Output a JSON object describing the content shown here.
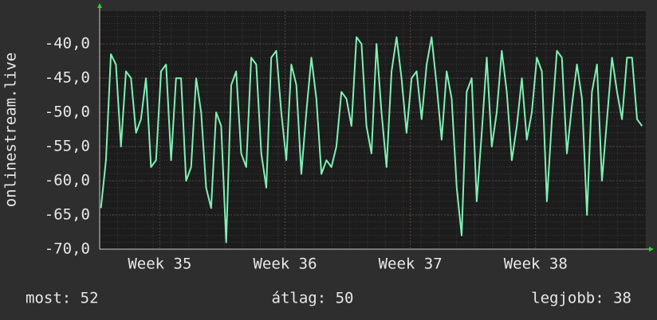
{
  "chart_data": {
    "type": "line",
    "ylabel": "onlinestream.live",
    "x": [
      34.53,
      34.57,
      34.61,
      34.65,
      34.69,
      34.73,
      34.77,
      34.81,
      34.85,
      34.89,
      34.93,
      34.97,
      35.01,
      35.05,
      35.09,
      35.13,
      35.17,
      35.21,
      35.25,
      35.29,
      35.33,
      35.37,
      35.41,
      35.45,
      35.49,
      35.53,
      35.57,
      35.61,
      35.65,
      35.69,
      35.73,
      35.77,
      35.81,
      35.85,
      35.89,
      35.93,
      35.97,
      36.01,
      36.05,
      36.09,
      36.13,
      36.17,
      36.21,
      36.25,
      36.29,
      36.33,
      36.37,
      36.41,
      36.45,
      36.49,
      36.53,
      36.57,
      36.61,
      36.65,
      36.69,
      36.73,
      36.77,
      36.81,
      36.85,
      36.89,
      36.93,
      36.97,
      37.01,
      37.05,
      37.09,
      37.13,
      37.17,
      37.21,
      37.25,
      37.29,
      37.33,
      37.37,
      37.41,
      37.45,
      37.49,
      37.53,
      37.57,
      37.61,
      37.65,
      37.69,
      37.73,
      37.77,
      37.81,
      37.85,
      37.89,
      37.93,
      37.97,
      38.01,
      38.05,
      38.09,
      38.13,
      38.17,
      38.21,
      38.25,
      38.29,
      38.33,
      38.37,
      38.41,
      38.45,
      38.49,
      38.53,
      38.57,
      38.61,
      38.65,
      38.69,
      38.73,
      38.77,
      38.81,
      38.85
    ],
    "series": [
      {
        "name": "onlinestream.live",
        "color": "#7ff0b4",
        "values": [
          -64,
          -57,
          -41.5,
          -43,
          -55,
          -44,
          -45,
          -53,
          -51,
          -45,
          -58,
          -57,
          -44,
          -43,
          -57,
          -45,
          -45,
          -60,
          -58,
          -45,
          -50,
          -61,
          -64,
          -50,
          -52,
          -69,
          -46,
          -44,
          -56,
          -58,
          -42,
          -43,
          -56,
          -61,
          -42,
          -41,
          -50,
          -57,
          -43,
          -46,
          -59,
          -50,
          -42,
          -48,
          -59,
          -57,
          -58,
          -55,
          -47,
          -48,
          -52,
          -39,
          -40,
          -52,
          -56,
          -40,
          -50,
          -58,
          -44,
          -39,
          -45,
          -53,
          -45,
          -44,
          -51,
          -43,
          -39,
          -46,
          -54,
          -44,
          -48,
          -61,
          -68,
          -47,
          -45,
          -63,
          -53,
          -42,
          -55,
          -50,
          -41,
          -47,
          -57,
          -52,
          -45,
          -54,
          -50,
          -42,
          -44,
          -63,
          -51,
          -41,
          -42,
          -56,
          -49,
          -43,
          -48,
          -65,
          -47,
          -43,
          -60,
          -51,
          -42,
          -47,
          -51,
          -42,
          -42,
          -51,
          -52
        ]
      }
    ],
    "xlim": [
      34.52,
      38.88
    ],
    "xticks": [
      {
        "value": 35,
        "label": "Week 35"
      },
      {
        "value": 36,
        "label": "Week 36"
      },
      {
        "value": 37,
        "label": "Week 37"
      },
      {
        "value": 38,
        "label": "Week 38"
      }
    ],
    "ylim": [
      -70,
      -35.2
    ],
    "yticks": [
      {
        "value": -70,
        "label": "-70,0"
      },
      {
        "value": -65,
        "label": "-65,0"
      },
      {
        "value": -60,
        "label": "-60,0"
      },
      {
        "value": -55,
        "label": "-55,0"
      },
      {
        "value": -50,
        "label": "-50,0"
      },
      {
        "value": -45,
        "label": "-45,0"
      },
      {
        "value": -40,
        "label": "-40,0"
      }
    ],
    "grid": true,
    "footer": [
      "most: 52",
      "átlag: 50",
      "legjobb: 38"
    ]
  }
}
